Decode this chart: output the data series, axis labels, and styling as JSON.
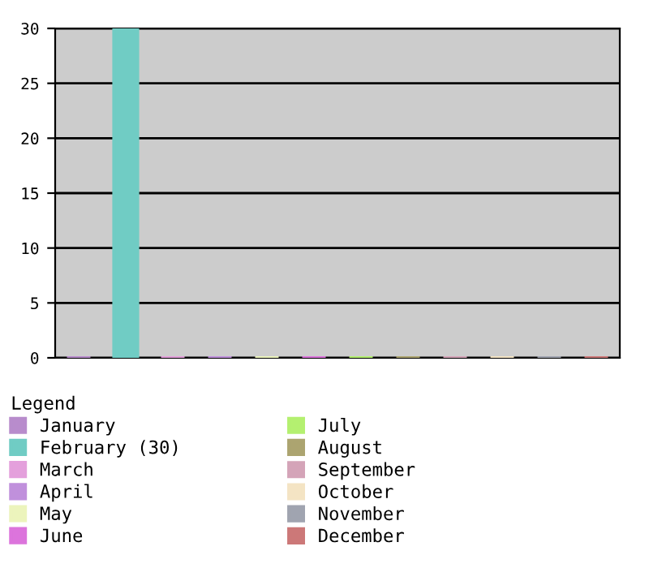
{
  "chart_data": {
    "type": "bar",
    "legend_title": "Legend",
    "categories": [
      null,
      null,
      null,
      null,
      null,
      null,
      null,
      null,
      null,
      null,
      null,
      null
    ],
    "series": [
      {
        "name": "January",
        "color": "#b88ccc",
        "values": [
          0,
          null,
          null,
          null,
          null,
          null,
          null,
          null,
          null,
          null,
          null,
          null
        ]
      },
      {
        "name": "February (30)",
        "color": "#70ccc4",
        "values": [
          null,
          30,
          null,
          null,
          null,
          null,
          null,
          null,
          null,
          null,
          null,
          null
        ]
      },
      {
        "name": "March",
        "color": "#e4a0dc",
        "values": [
          null,
          null,
          0,
          null,
          null,
          null,
          null,
          null,
          null,
          null,
          null,
          null
        ]
      },
      {
        "name": "April",
        "color": "#c090dc",
        "values": [
          null,
          null,
          null,
          0,
          null,
          null,
          null,
          null,
          null,
          null,
          null,
          null
        ]
      },
      {
        "name": "May",
        "color": "#ecf4bc",
        "values": [
          null,
          null,
          null,
          null,
          0,
          null,
          null,
          null,
          null,
          null,
          null,
          null
        ]
      },
      {
        "name": "June",
        "color": "#dc74dc",
        "values": [
          null,
          null,
          null,
          null,
          null,
          0,
          null,
          null,
          null,
          null,
          null,
          null
        ]
      },
      {
        "name": "July",
        "color": "#b4f070",
        "values": [
          null,
          null,
          null,
          null,
          null,
          null,
          0,
          null,
          null,
          null,
          null,
          null
        ]
      },
      {
        "name": "August",
        "color": "#aca470",
        "values": [
          null,
          null,
          null,
          null,
          null,
          null,
          null,
          0,
          null,
          null,
          null,
          null
        ]
      },
      {
        "name": "September",
        "color": "#d4a4b8",
        "values": [
          null,
          null,
          null,
          null,
          null,
          null,
          null,
          null,
          0,
          null,
          null,
          null
        ]
      },
      {
        "name": "October",
        "color": "#f4e4c4",
        "values": [
          null,
          null,
          null,
          null,
          null,
          null,
          null,
          null,
          null,
          0,
          null,
          null
        ]
      },
      {
        "name": "November",
        "color": "#a0a4b0",
        "values": [
          null,
          null,
          null,
          null,
          null,
          null,
          null,
          null,
          null,
          null,
          0,
          null
        ]
      },
      {
        "name": "December",
        "color": "#cc7878",
        "values": [
          null,
          null,
          null,
          null,
          null,
          null,
          null,
          null,
          null,
          null,
          null,
          0
        ]
      }
    ],
    "ylim": [
      0,
      30
    ],
    "yticks": [
      0,
      5,
      10,
      15,
      20,
      25,
      30
    ],
    "grid": "y",
    "tick_labels": "y",
    "legend": "bottom"
  }
}
